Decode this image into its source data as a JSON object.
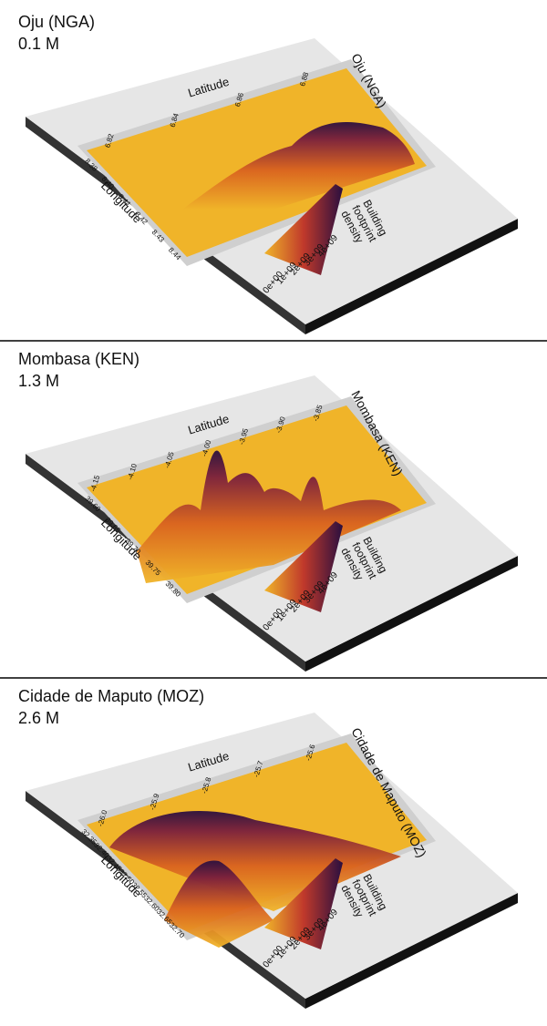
{
  "panels": [
    {
      "title": "Oju (NGA)",
      "population": "0.1 M",
      "plot_title": "Oju (NGA)",
      "x_axis_label": "Latitude",
      "latitude_ticks": [
        "6.82",
        "6.84",
        "6.86",
        "6.88"
      ],
      "y_axis_label": "Longitude",
      "longitude_ticks": [
        "8.38",
        "8.40",
        "8.41",
        "8.42",
        "8.43",
        "8.44"
      ],
      "legend_title": [
        "Building",
        "footprint",
        "density"
      ],
      "legend_labels": [
        "0e+00",
        "1e+09",
        "2e+09",
        "3e+09",
        "4e+09"
      ]
    },
    {
      "title": "Mombasa (KEN)",
      "population": "1.3 M",
      "plot_title": "Mombasa (KEN)",
      "x_axis_label": "Latitude",
      "latitude_ticks": [
        "-4.15",
        "-4.10",
        "-4.05",
        "-4.00",
        "-3.95",
        "-3.90",
        "-3.85"
      ],
      "y_axis_label": "Longitude",
      "longitude_ticks": [
        "39.60",
        "39.65",
        "39.70",
        "39.75",
        "39.80"
      ],
      "legend_title": [
        "Building",
        "footprint",
        "density"
      ],
      "legend_labels": [
        "0e+00",
        "1e+09",
        "2e+09",
        "3e+09",
        "4e+09"
      ]
    },
    {
      "title": "Cidade de Maputo (MOZ)",
      "population": "2.6 M",
      "plot_title": "Cidade de Maputo (MOZ)",
      "x_axis_label": "Latitude",
      "latitude_ticks": [
        "-26.0",
        "-25.9",
        "-25.8",
        "-25.7",
        "-25.6"
      ],
      "y_axis_label": "Longitude",
      "longitude_ticks": [
        "32.35",
        "32.40",
        "32.45",
        "32.50",
        "32.55",
        "32.60",
        "32.65",
        "32.70"
      ],
      "legend_title": [
        "Building",
        "footprint",
        "density"
      ],
      "legend_labels": [
        "0e+00",
        "1e+09",
        "2e+09",
        "3e+09",
        "4e+09"
      ]
    }
  ]
}
